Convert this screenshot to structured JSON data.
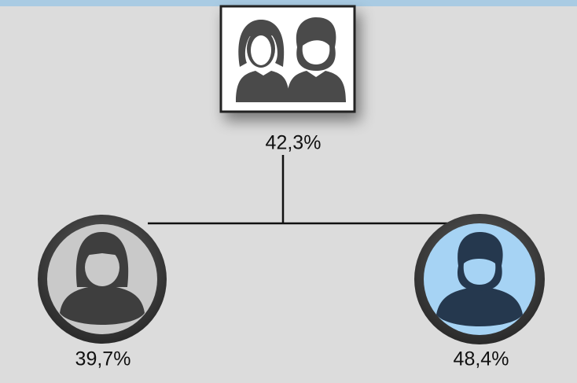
{
  "nodes": [
    {
      "label": "42,3%"
    },
    {
      "label": "39,7%"
    },
    {
      "label": "48,4%"
    }
  ]
}
